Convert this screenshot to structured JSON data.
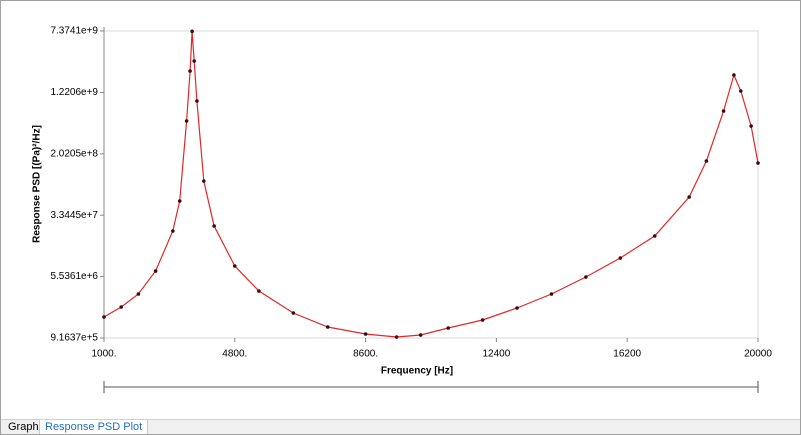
{
  "chart_data": {
    "type": "line",
    "x_label": "Frequency [Hz]",
    "y_label": "Response PSD [(Pa)²/Hz]",
    "log_y": true,
    "line_color": "#e02828",
    "marker_color": "#3a0c0c",
    "xlim": [
      1000,
      20000
    ],
    "ylim": [
      916370,
      7374100000
    ],
    "xticks": [
      {
        "value": 1000,
        "label": "1000."
      },
      {
        "value": 4800,
        "label": "4800."
      },
      {
        "value": 8600,
        "label": "8600."
      },
      12400,
      16200,
      20000
    ],
    "yticks": [
      {
        "value": 916370,
        "label": "9.1637e+5"
      },
      {
        "value": 5536100,
        "label": "5.5361e+6"
      },
      {
        "value": 33445000,
        "label": "3.3445e+7"
      },
      {
        "value": 202050000,
        "label": "2.0205e+8"
      },
      {
        "value": 1220600000,
        "label": "1.2206e+9"
      },
      {
        "value": 7374100000,
        "label": "7.3741e+9"
      }
    ],
    "x": [
      1000,
      1500,
      2000,
      2500,
      3000,
      3200,
      3400,
      3500,
      3560,
      3620,
      3700,
      3900,
      4200,
      4800,
      5500,
      6500,
      7500,
      8600,
      9500,
      10200,
      11000,
      12000,
      13000,
      14000,
      15000,
      16000,
      17000,
      18000,
      18500,
      19000,
      19300,
      19500,
      19800,
      20000
    ],
    "values": [
      1695000,
      2272000,
      3325000,
      6520000,
      21050000,
      50700000,
      528000000,
      2284000000,
      7300000000,
      3060000000,
      949000000,
      91100000,
      24370000,
      7550000,
      3630000,
      1905000,
      1265000,
      1030000,
      943000,
      1000000,
      1228000,
      1552000,
      2207000,
      3325000,
      5470000,
      9540000,
      18180000,
      57000000,
      163600000,
      708000000,
      2032000000,
      1272000000,
      456000000,
      154300000
    ],
    "tabs": [
      "Graph",
      "Response PSD Plot"
    ]
  }
}
